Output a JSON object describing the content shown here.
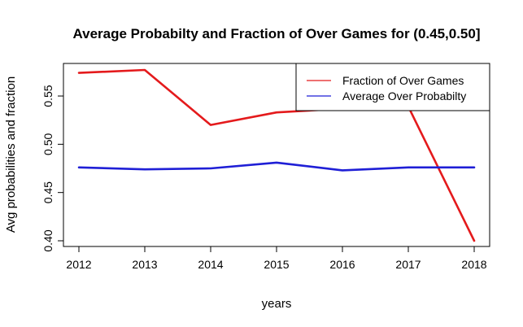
{
  "chart_data": {
    "type": "line",
    "title": "Average Probabilty and Fraction of Over Games for (0.45,0.50]",
    "xlabel": "years",
    "ylabel": "Avg probabilities and fraction",
    "x": [
      2012,
      2013,
      2014,
      2015,
      2016,
      2017,
      2018
    ],
    "xlim": [
      2012,
      2018
    ],
    "ylim": [
      0.4,
      0.577
    ],
    "yticks": [
      0.4,
      0.45,
      0.5,
      0.55
    ],
    "ytick_labels": [
      "0.40",
      "0.45",
      "0.50",
      "0.55"
    ],
    "xtick_labels": [
      "2012",
      "2013",
      "2014",
      "2015",
      "2016",
      "2017",
      "2018"
    ],
    "grid": false,
    "legend_position": "top-right",
    "series": [
      {
        "name": "Fraction of Over Games",
        "color": "#e41a1c",
        "values": [
          0.574,
          0.577,
          0.52,
          0.533,
          0.537,
          0.539,
          0.4
        ]
      },
      {
        "name": "Average Over Probabilty",
        "color": "#1f1fd6",
        "values": [
          0.476,
          0.474,
          0.475,
          0.481,
          0.473,
          0.476,
          0.476
        ]
      }
    ]
  }
}
